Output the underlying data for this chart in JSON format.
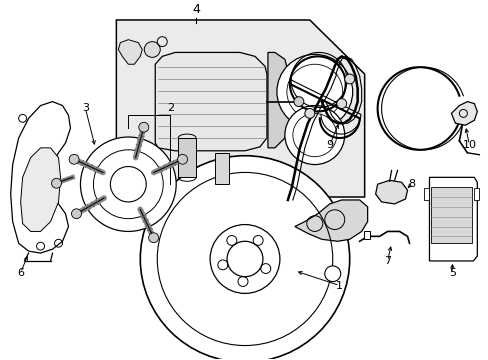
{
  "background_color": "#ffffff",
  "line_color": "#000000",
  "box_fill": "#ebebeb",
  "figsize": [
    4.89,
    3.6
  ],
  "dpi": 100,
  "xlim": [
    0,
    489
  ],
  "ylim": [
    0,
    360
  ]
}
